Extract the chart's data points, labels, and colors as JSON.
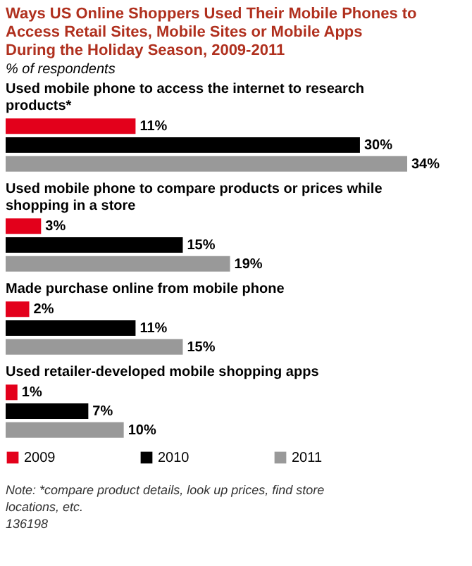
{
  "chart_data": {
    "type": "bar",
    "orientation": "horizontal",
    "title": "Ways US Online Shoppers Used Their Mobile Phones to Access Retail Sites, Mobile Sites or Mobile Apps During the Holiday Season, 2009-2011",
    "subtitle": "% of respondents",
    "categories": [
      "Used mobile phone to access the internet to research products*",
      "Used mobile phone to compare products or prices while shopping in a store",
      "Made purchase online from mobile phone",
      "Used retailer-developed mobile shopping apps"
    ],
    "series": [
      {
        "name": "2009",
        "color": "#e3001b",
        "values": [
          11,
          3,
          2,
          1
        ],
        "value_labels": [
          "11%",
          "3%",
          "2%",
          "1%"
        ]
      },
      {
        "name": "2010",
        "color": "#000000",
        "values": [
          30,
          15,
          11,
          7
        ],
        "value_labels": [
          "30%",
          "15%",
          "11%",
          "7%"
        ]
      },
      {
        "name": "2011",
        "color": "#999999",
        "values": [
          34,
          19,
          15,
          10
        ],
        "value_labels": [
          "34%",
          "19%",
          "15%",
          "10%"
        ]
      }
    ],
    "legend": "bottom",
    "annotations": [
      "Note: *compare product details, look up prices, find store locations, etc.",
      "136198"
    ]
  }
}
